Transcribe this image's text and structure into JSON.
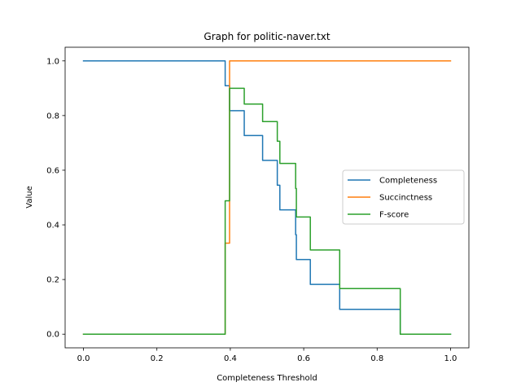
{
  "chart_data": {
    "type": "line",
    "title": "Graph for politic-naver.txt",
    "xlabel": "Completeness Threshold",
    "ylabel": "Value",
    "xlim": [
      -0.05,
      1.05
    ],
    "ylim": [
      -0.05,
      1.05
    ],
    "xticks": [
      "0.0",
      "0.2",
      "0.4",
      "0.6",
      "0.8",
      "1.0"
    ],
    "yticks": [
      "0.0",
      "0.2",
      "0.4",
      "0.6",
      "0.8",
      "1.0"
    ],
    "grid": false,
    "legend_position": "center-right",
    "series": [
      {
        "name": "Completeness",
        "color": "#1f77b4",
        "points": [
          [
            0.0,
            1.0
          ],
          [
            0.386,
            1.0
          ],
          [
            0.386,
            0.909
          ],
          [
            0.398,
            0.909
          ],
          [
            0.398,
            0.818
          ],
          [
            0.438,
            0.818
          ],
          [
            0.438,
            0.727
          ],
          [
            0.488,
            0.727
          ],
          [
            0.488,
            0.636
          ],
          [
            0.528,
            0.636
          ],
          [
            0.528,
            0.545
          ],
          [
            0.535,
            0.545
          ],
          [
            0.535,
            0.455
          ],
          [
            0.578,
            0.455
          ],
          [
            0.578,
            0.364
          ],
          [
            0.58,
            0.364
          ],
          [
            0.58,
            0.273
          ],
          [
            0.618,
            0.273
          ],
          [
            0.618,
            0.182
          ],
          [
            0.698,
            0.182
          ],
          [
            0.698,
            0.091
          ],
          [
            0.863,
            0.091
          ],
          [
            0.863,
            0.0
          ],
          [
            1.0,
            0.0
          ]
        ]
      },
      {
        "name": "Succinctness",
        "color": "#ff7f0e",
        "points": [
          [
            0.0,
            0.0
          ],
          [
            0.386,
            0.0
          ],
          [
            0.386,
            0.333
          ],
          [
            0.398,
            0.333
          ],
          [
            0.398,
            1.0
          ],
          [
            1.0,
            1.0
          ]
        ]
      },
      {
        "name": "F-score",
        "color": "#2ca02c",
        "points": [
          [
            0.0,
            0.0
          ],
          [
            0.386,
            0.0
          ],
          [
            0.386,
            0.488
          ],
          [
            0.398,
            0.488
          ],
          [
            0.398,
            0.9
          ],
          [
            0.438,
            0.9
          ],
          [
            0.438,
            0.842
          ],
          [
            0.488,
            0.842
          ],
          [
            0.488,
            0.778
          ],
          [
            0.528,
            0.778
          ],
          [
            0.528,
            0.706
          ],
          [
            0.535,
            0.706
          ],
          [
            0.535,
            0.625
          ],
          [
            0.578,
            0.625
          ],
          [
            0.578,
            0.533
          ],
          [
            0.58,
            0.533
          ],
          [
            0.58,
            0.429
          ],
          [
            0.618,
            0.429
          ],
          [
            0.618,
            0.308
          ],
          [
            0.698,
            0.308
          ],
          [
            0.698,
            0.167
          ],
          [
            0.863,
            0.167
          ],
          [
            0.863,
            0.0
          ],
          [
            1.0,
            0.0
          ]
        ]
      }
    ]
  }
}
